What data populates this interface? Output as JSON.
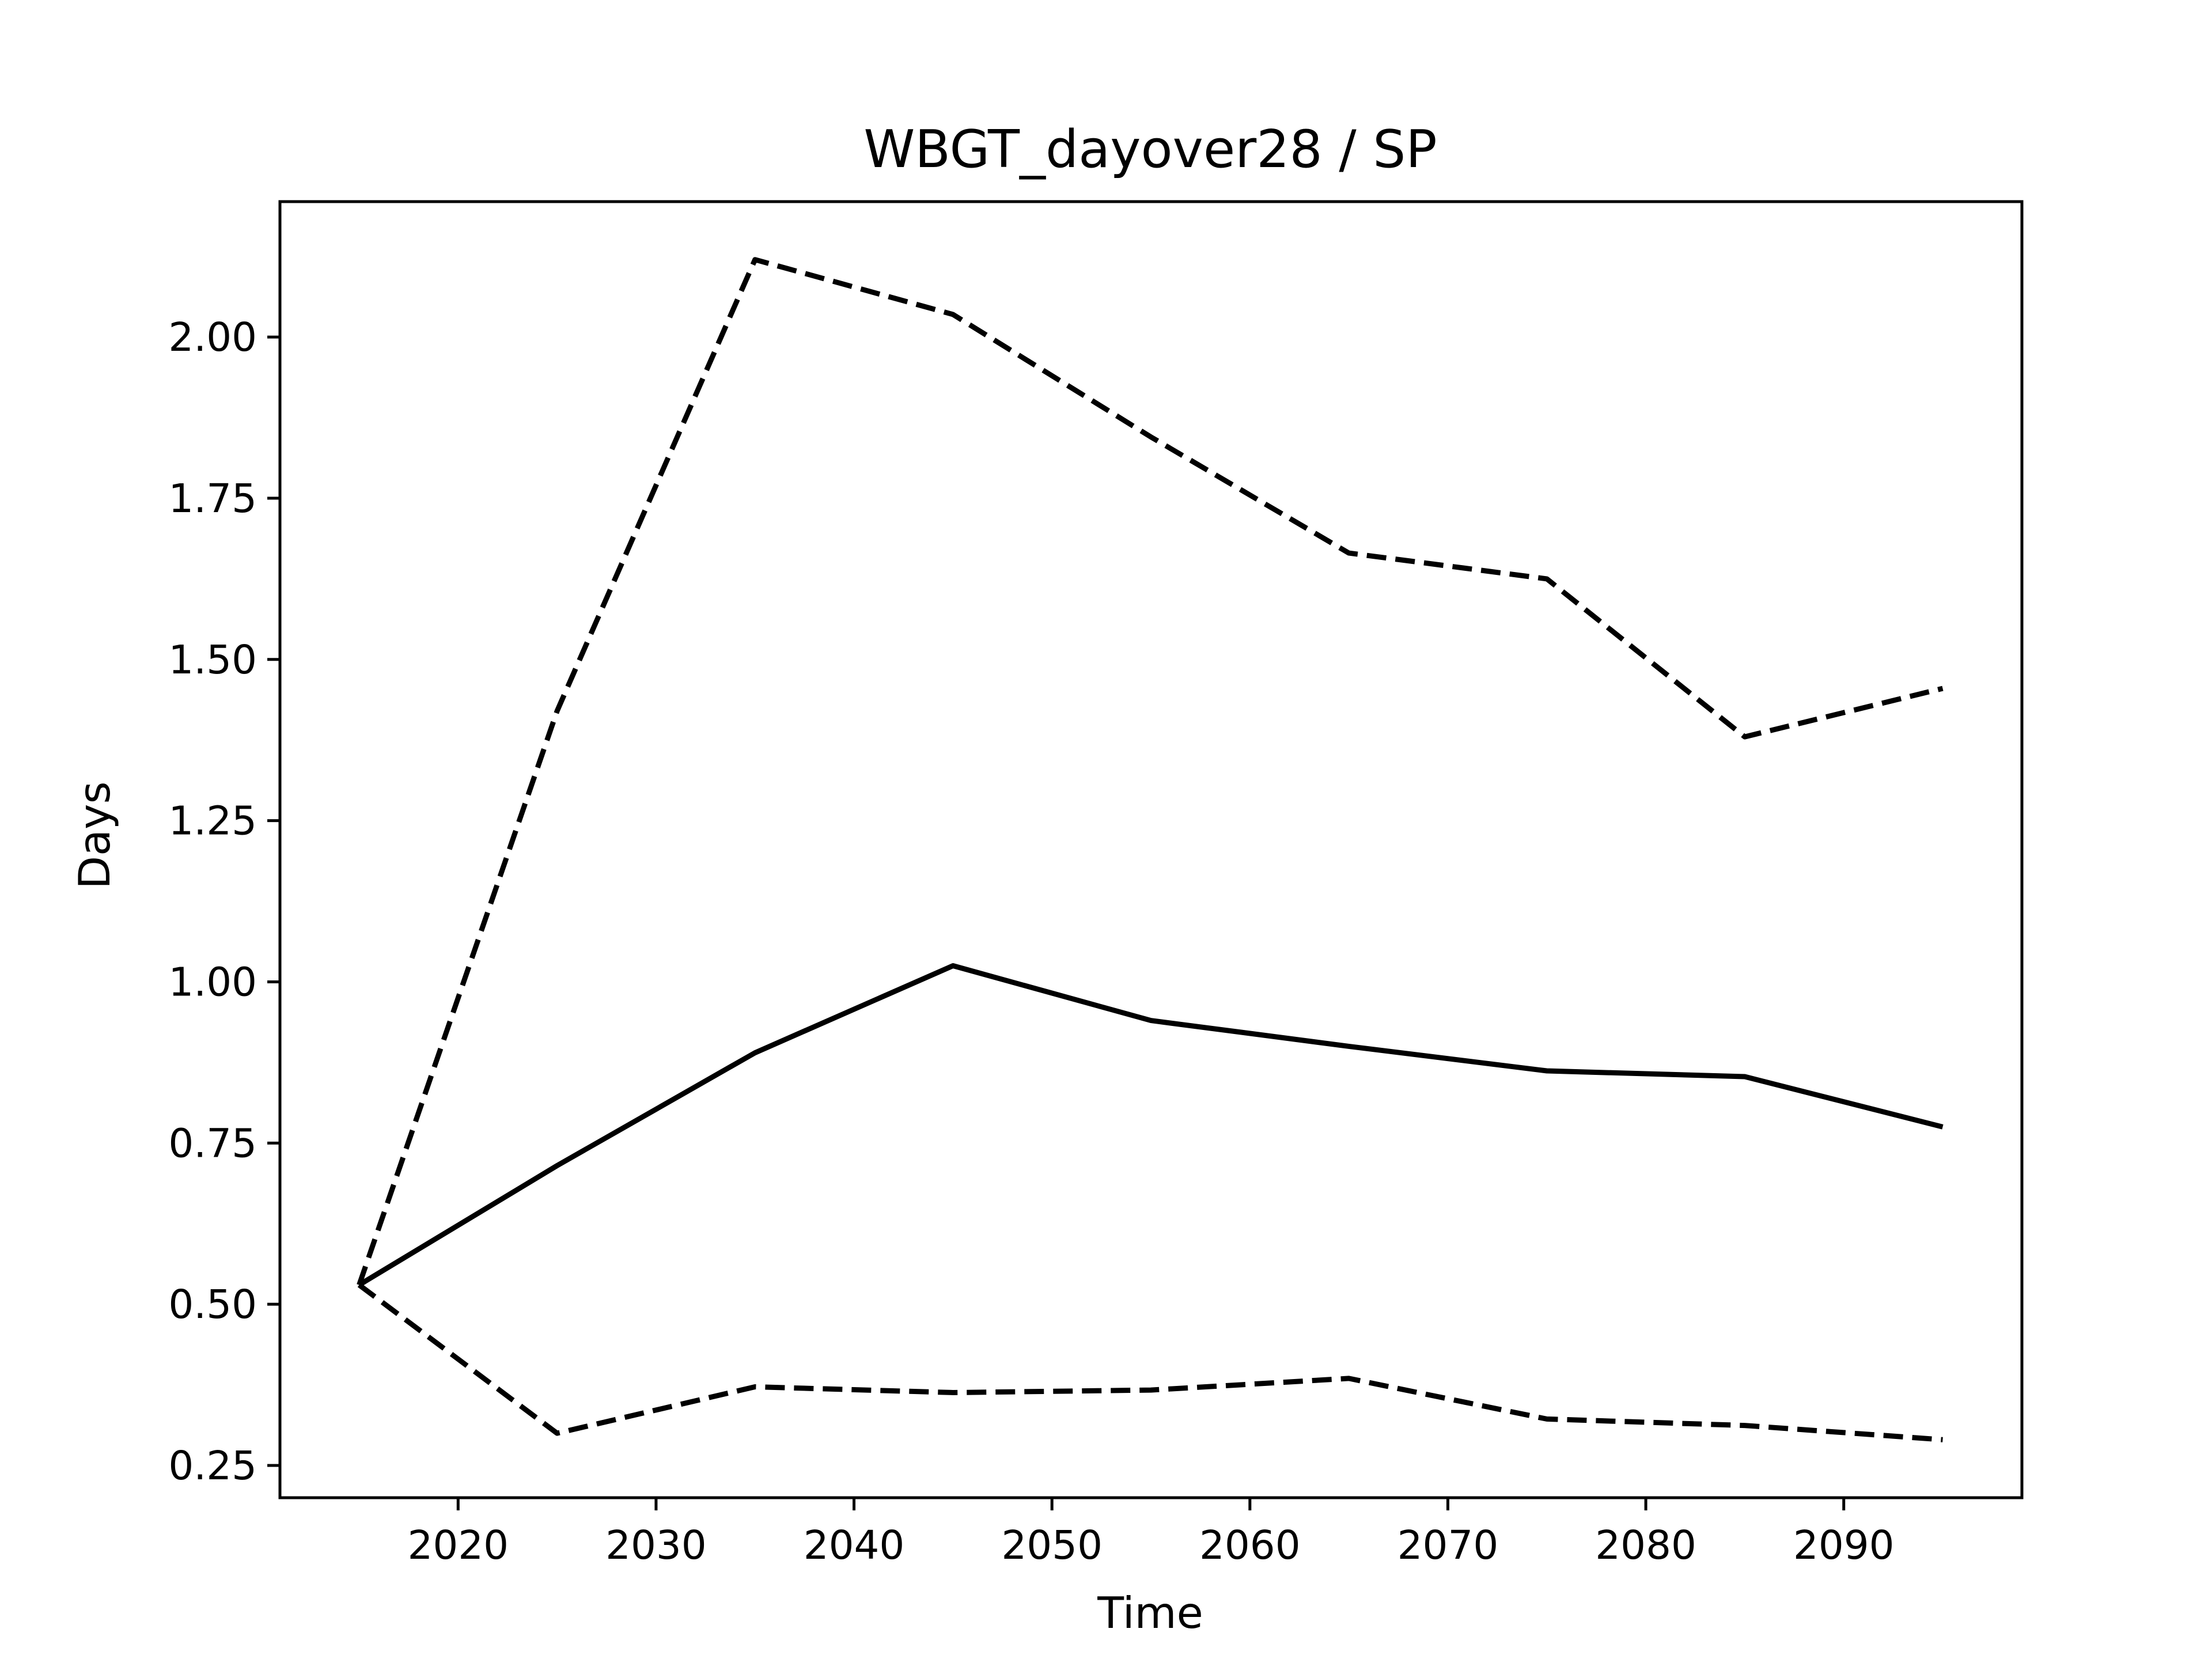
{
  "chart_data": {
    "type": "line",
    "title": "WBGT_dayover28 / SP",
    "xlabel": "Time",
    "ylabel": "Days",
    "xlim": [
      2011,
      2099
    ],
    "ylim": [
      0.2,
      2.21
    ],
    "grid": false,
    "x_ticks": [
      2020,
      2030,
      2040,
      2050,
      2060,
      2070,
      2080,
      2090
    ],
    "y_ticks": [
      0.25,
      0.5,
      0.75,
      1.0,
      1.25,
      1.5,
      1.75,
      2.0
    ],
    "y_tick_labels": [
      "0.25",
      "0.50",
      "0.75",
      "1.00",
      "1.25",
      "1.50",
      "1.75",
      "2.00"
    ],
    "x": [
      2015,
      2025,
      2035,
      2045,
      2055,
      2065,
      2075,
      2085,
      2095
    ],
    "series": [
      {
        "style": "dashed",
        "color": "#000000",
        "values": [
          0.53,
          1.42,
          2.12,
          2.035,
          1.845,
          1.665,
          1.625,
          1.38,
          1.455
        ]
      },
      {
        "style": "solid",
        "color": "#000000",
        "values": [
          0.53,
          0.715,
          0.89,
          1.025,
          0.94,
          0.9,
          0.862,
          0.853,
          0.775
        ]
      },
      {
        "style": "dashed",
        "color": "#000000",
        "values": [
          0.53,
          0.3,
          0.372,
          0.363,
          0.367,
          0.385,
          0.322,
          0.312,
          0.29
        ]
      }
    ]
  }
}
